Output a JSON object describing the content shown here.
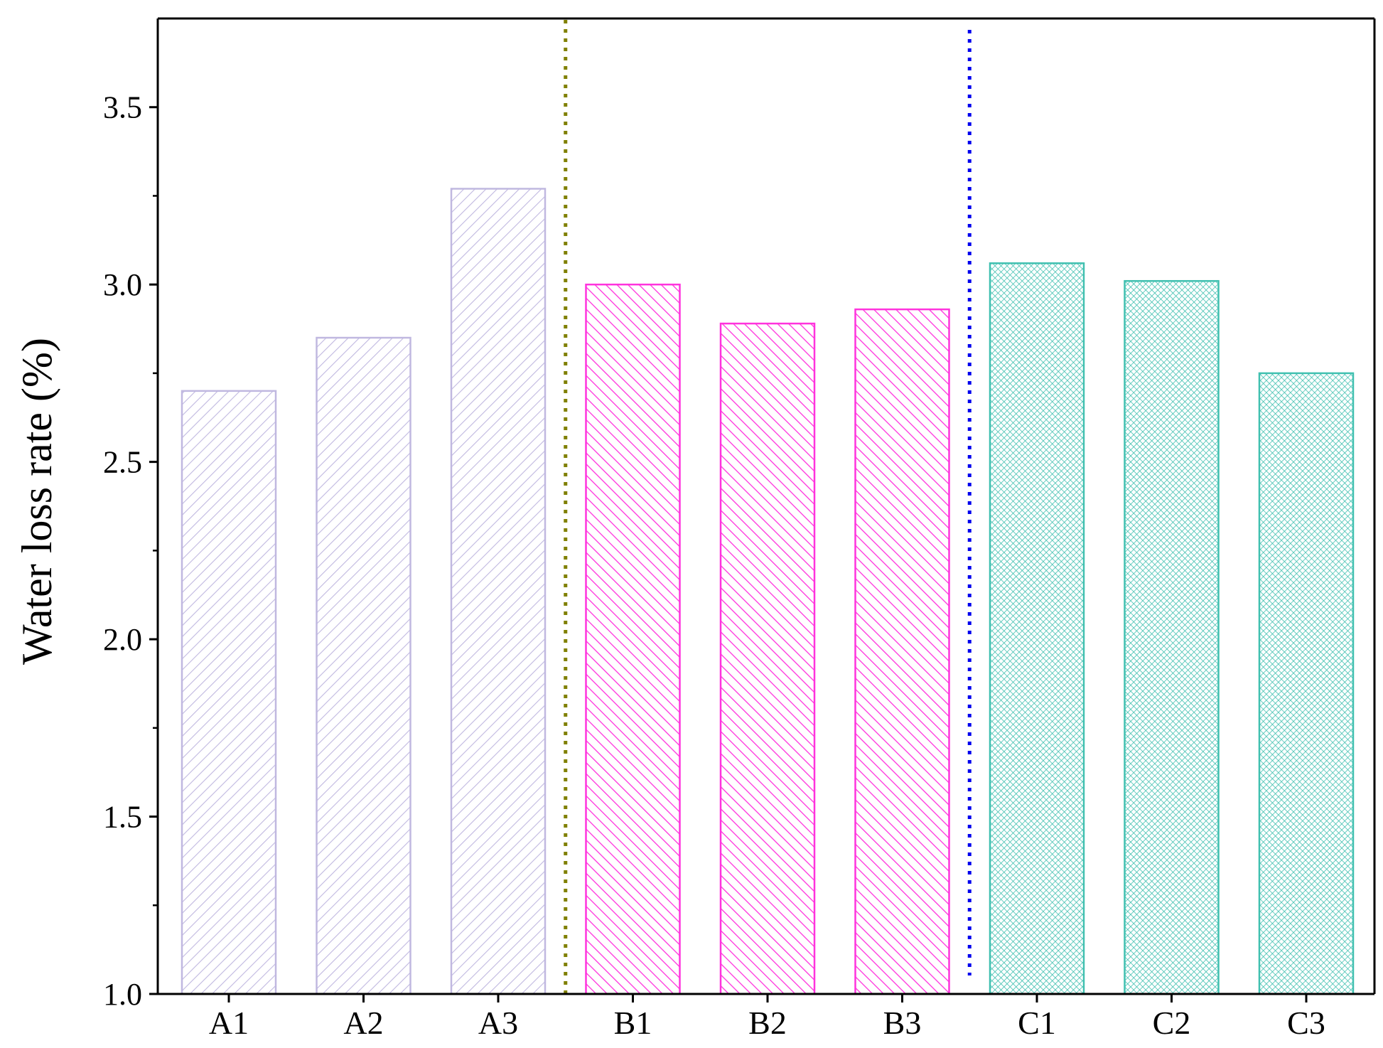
{
  "chart_data": {
    "type": "bar",
    "title": "",
    "xlabel": "",
    "ylabel": "Water loss rate (%)",
    "ylim": [
      1.0,
      3.75
    ],
    "yticks": [
      "1.0",
      "1.5",
      "2.0",
      "2.5",
      "3.0",
      "3.5"
    ],
    "categories": [
      "A1",
      "A2",
      "A3",
      "B1",
      "B2",
      "B3",
      "C1",
      "C2",
      "C3"
    ],
    "values": [
      2.7,
      2.85,
      3.27,
      3.0,
      2.89,
      2.93,
      3.06,
      3.01,
      2.75
    ],
    "groups": [
      {
        "members": [
          "A1",
          "A2",
          "A3"
        ],
        "color": "#c0b8e0",
        "pattern": "diagonal-hatch"
      },
      {
        "members": [
          "B1",
          "B2",
          "B3"
        ],
        "color": "#ff33dd",
        "pattern": "back-diagonal-hatch"
      },
      {
        "members": [
          "C1",
          "C2",
          "C3"
        ],
        "color": "#40c0b0",
        "pattern": "crosshatch"
      }
    ],
    "separators": [
      {
        "after": "A3",
        "color": "#808000",
        "style": "dotted"
      },
      {
        "after": "B3",
        "color": "#0000ee",
        "style": "dotted"
      }
    ],
    "grid": false,
    "legend": "none"
  }
}
